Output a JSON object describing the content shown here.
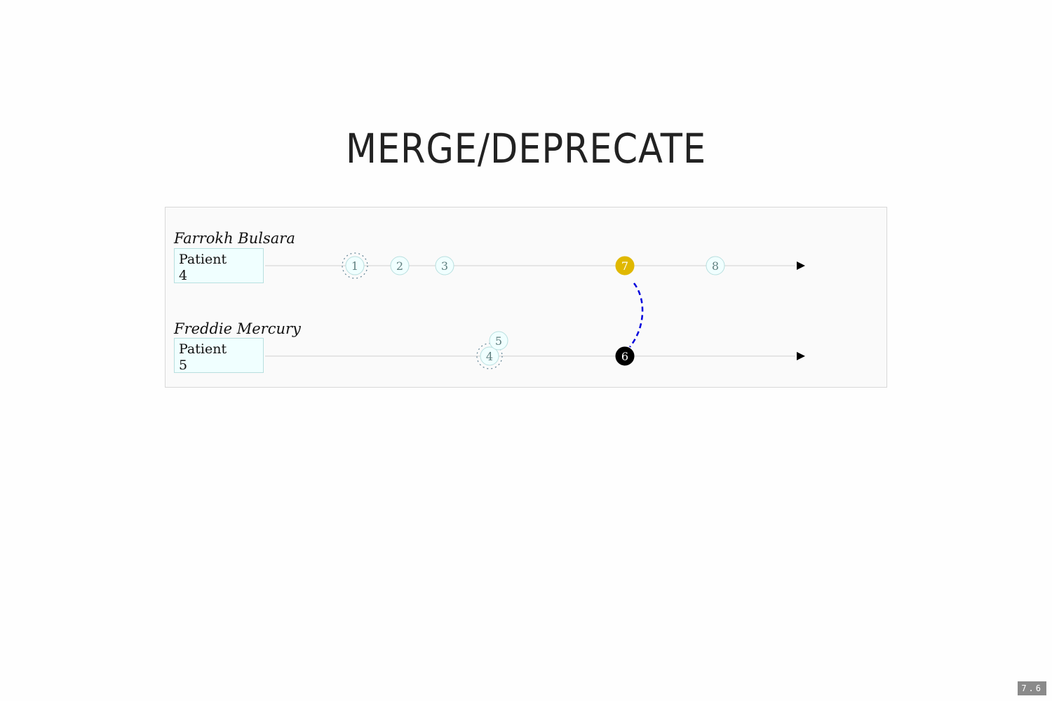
{
  "title": "MERGE/DEPRECATE",
  "page_number": "7.6",
  "lanes": [
    {
      "name": "Farrokh Bulsara",
      "resource_type": "Patient",
      "resource_id": "4",
      "versions": [
        {
          "label": "1",
          "style": "dotted-ring"
        },
        {
          "label": "2",
          "style": "normal"
        },
        {
          "label": "3",
          "style": "normal"
        },
        {
          "label": "7",
          "style": "highlight"
        },
        {
          "label": "8",
          "style": "normal"
        }
      ]
    },
    {
      "name": "Freddie Mercury",
      "resource_type": "Patient",
      "resource_id": "5",
      "versions": [
        {
          "label": "4",
          "style": "dotted-ring"
        },
        {
          "label": "5",
          "style": "normal"
        },
        {
          "label": "6",
          "style": "dark"
        }
      ]
    }
  ],
  "link": {
    "from_version": "7",
    "to_version": "6",
    "style": "dashed"
  },
  "colors": {
    "timeline": "#d0d0d0",
    "node_fill": "#f0ffff",
    "node_stroke": "#b8dfdf",
    "node_text": "#5f7f7f",
    "highlight": "#e0b800",
    "dark": "#000000",
    "link": "#0000dd"
  }
}
